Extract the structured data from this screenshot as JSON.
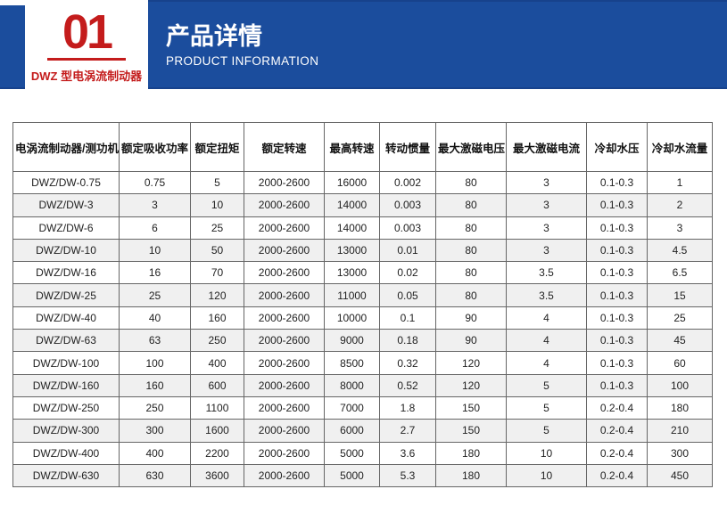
{
  "banner": {
    "badge_number": "01",
    "badge_label": "DWZ 型电涡流制动器",
    "title": "产品详情",
    "subtitle": "PRODUCT INFORMATION",
    "colors": {
      "banner_blue": "#1b4d9d",
      "banner_blue_dark": "#17428c",
      "accent_red": "#c41c1c"
    }
  },
  "table": {
    "columns": [
      "电涡流制动器/测功机",
      "额定吸收功率",
      "额定扭矩",
      "额定转速",
      "最高转速",
      "转动惯量",
      "最大激磁电压",
      "最大激磁电流",
      "冷却水压",
      "冷却水流量"
    ],
    "rows": [
      [
        "DWZ/DW-0.75",
        "0.75",
        "5",
        "2000-2600",
        "16000",
        "0.002",
        "80",
        "3",
        "0.1-0.3",
        "1"
      ],
      [
        "DWZ/DW-3",
        "3",
        "10",
        "2000-2600",
        "14000",
        "0.003",
        "80",
        "3",
        "0.1-0.3",
        "2"
      ],
      [
        "DWZ/DW-6",
        "6",
        "25",
        "2000-2600",
        "14000",
        "0.003",
        "80",
        "3",
        "0.1-0.3",
        "3"
      ],
      [
        "DWZ/DW-10",
        "10",
        "50",
        "2000-2600",
        "13000",
        "0.01",
        "80",
        "3",
        "0.1-0.3",
        "4.5"
      ],
      [
        "DWZ/DW-16",
        "16",
        "70",
        "2000-2600",
        "13000",
        "0.02",
        "80",
        "3.5",
        "0.1-0.3",
        "6.5"
      ],
      [
        "DWZ/DW-25",
        "25",
        "120",
        "2000-2600",
        "11000",
        "0.05",
        "80",
        "3.5",
        "0.1-0.3",
        "15"
      ],
      [
        "DWZ/DW-40",
        "40",
        "160",
        "2000-2600",
        "10000",
        "0.1",
        "90",
        "4",
        "0.1-0.3",
        "25"
      ],
      [
        "DWZ/DW-63",
        "63",
        "250",
        "2000-2600",
        "9000",
        "0.18",
        "90",
        "4",
        "0.1-0.3",
        "45"
      ],
      [
        "DWZ/DW-100",
        "100",
        "400",
        "2000-2600",
        "8500",
        "0.32",
        "120",
        "4",
        "0.1-0.3",
        "60"
      ],
      [
        "DWZ/DW-160",
        "160",
        "600",
        "2000-2600",
        "8000",
        "0.52",
        "120",
        "5",
        "0.1-0.3",
        "100"
      ],
      [
        "DWZ/DW-250",
        "250",
        "1100",
        "2000-2600",
        "7000",
        "1.8",
        "150",
        "5",
        "0.2-0.4",
        "180"
      ],
      [
        "DWZ/DW-300",
        "300",
        "1600",
        "2000-2600",
        "6000",
        "2.7",
        "150",
        "5",
        "0.2-0.4",
        "210"
      ],
      [
        "DWZ/DW-400",
        "400",
        "2200",
        "2000-2600",
        "5000",
        "3.6",
        "180",
        "10",
        "0.2-0.4",
        "300"
      ],
      [
        "DWZ/DW-630",
        "630",
        "3600",
        "2000-2600",
        "5000",
        "5.3",
        "180",
        "10",
        "0.2-0.4",
        "450"
      ]
    ]
  }
}
